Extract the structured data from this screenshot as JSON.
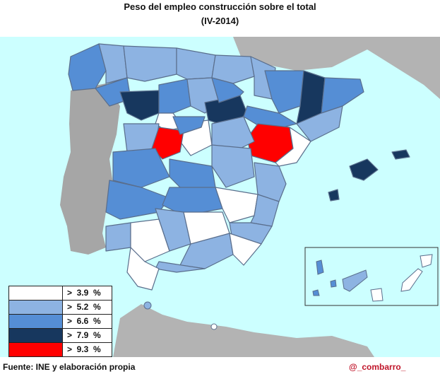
{
  "title": "Peso del empleo construcción sobre el total",
  "subtitle": "(IV-2014)",
  "legend": [
    {
      "label": ">  3.9  %",
      "color": "#ffffff"
    },
    {
      "label": ">  5.2  %",
      "color": "#8db3e2"
    },
    {
      "label": ">  6.6  %",
      "color": "#558ed5"
    },
    {
      "label": ">  7.9  %",
      "color": "#17375e"
    },
    {
      "label": ">  9.3  %",
      "color": "#ff0000"
    }
  ],
  "colors": {
    "sea": "#ccffff",
    "neighbor_land": "#b0b0b0",
    "border": "#5a6e8c"
  },
  "footer": {
    "source": "Fuente: INE y elaboración  propia",
    "author": "@_combarro_"
  }
}
